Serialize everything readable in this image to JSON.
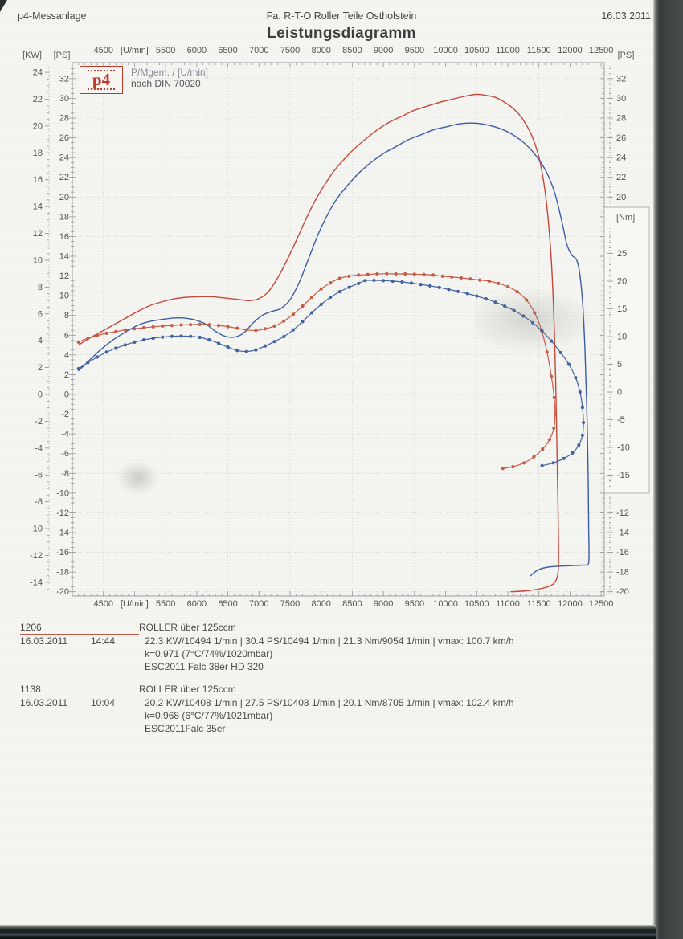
{
  "header": {
    "left": "p4-Messanlage",
    "center": "Fa. R-T-O  Roller Teile Ostholstein",
    "date": "16.03.2011",
    "title": "Leistungsdiagramm"
  },
  "legend": {
    "logo": "p4",
    "line1": "P/Mgem. / [U/min]",
    "line2": "nach DIN 70020"
  },
  "axes": {
    "kw_header": "[KW]",
    "ps_left_header": "[PS]",
    "ps_right_header": "[PS]",
    "nm_header": "[Nm]",
    "x_labels": [
      {
        "rpm": 4500,
        "text": "4500"
      },
      {
        "rpm": 5000,
        "text": "[U/min]"
      },
      {
        "rpm": 5500,
        "text": "5500"
      },
      {
        "rpm": 6000,
        "text": "6000"
      },
      {
        "rpm": 6500,
        "text": "6500"
      },
      {
        "rpm": 7000,
        "text": "7000"
      },
      {
        "rpm": 7500,
        "text": "7500"
      },
      {
        "rpm": 8000,
        "text": "8000"
      },
      {
        "rpm": 8500,
        "text": "8500"
      },
      {
        "rpm": 9000,
        "text": "9000"
      },
      {
        "rpm": 9500,
        "text": "9500"
      },
      {
        "rpm": 10000,
        "text": "10000"
      },
      {
        "rpm": 10500,
        "text": "10500"
      },
      {
        "rpm": 11000,
        "text": "11000"
      },
      {
        "rpm": 11500,
        "text": "11500"
      },
      {
        "rpm": 12000,
        "text": "12000"
      },
      {
        "rpm": 12500,
        "text": "12500"
      }
    ],
    "kw_ticks": [
      24,
      22,
      20,
      18,
      16,
      14,
      12,
      10,
      8,
      6,
      4,
      2,
      0,
      -2,
      -4,
      -6,
      -8,
      -10,
      -12,
      -14
    ],
    "ps_left_ticks": [
      32,
      30,
      28,
      26,
      24,
      22,
      20,
      18,
      16,
      14,
      12,
      10,
      8,
      6,
      4,
      2,
      0,
      -2,
      -4,
      -6,
      -8,
      -10,
      -12,
      -14,
      -16,
      -18,
      -20
    ],
    "ps_right_upper": [
      32,
      30,
      28,
      26,
      24,
      22,
      20
    ],
    "ps_right_lower": [
      -12,
      -14,
      -16,
      -18,
      -20
    ],
    "nm_ticks": [
      25,
      20,
      15,
      10,
      5,
      0,
      -5,
      -10,
      -15
    ]
  },
  "chart_data": {
    "type": "line",
    "title": "Leistungsdiagramm",
    "x_unit": "[U/min]",
    "x_range": [
      4000,
      12550
    ],
    "y_left_ps_range": [
      -20,
      32
    ],
    "y_left_kw_range": [
      -14,
      24
    ],
    "y_right_nm_range": [
      -15,
      25
    ],
    "grid": {
      "x_start": 4500,
      "x_step": 1000,
      "ps_step": 4
    },
    "series": [
      {
        "name": "power-run-1206",
        "unit": "PS",
        "axis": "ps",
        "color": "#c5493a",
        "markers": false,
        "points": [
          [
            4100,
            5.0
          ],
          [
            4250,
            5.6
          ],
          [
            4450,
            6.3
          ],
          [
            4650,
            7.0
          ],
          [
            4850,
            7.7
          ],
          [
            5050,
            8.4
          ],
          [
            5250,
            9.0
          ],
          [
            5450,
            9.4
          ],
          [
            5650,
            9.7
          ],
          [
            5850,
            9.85
          ],
          [
            6050,
            9.9
          ],
          [
            6250,
            9.9
          ],
          [
            6400,
            9.8
          ],
          [
            6550,
            9.7
          ],
          [
            6700,
            9.6
          ],
          [
            6850,
            9.5
          ],
          [
            7000,
            9.7
          ],
          [
            7150,
            10.4
          ],
          [
            7300,
            11.8
          ],
          [
            7450,
            13.6
          ],
          [
            7600,
            15.6
          ],
          [
            7750,
            17.7
          ],
          [
            7900,
            19.6
          ],
          [
            8050,
            21.2
          ],
          [
            8200,
            22.6
          ],
          [
            8350,
            23.7
          ],
          [
            8500,
            24.7
          ],
          [
            8700,
            25.8
          ],
          [
            8900,
            26.8
          ],
          [
            9100,
            27.6
          ],
          [
            9300,
            28.2
          ],
          [
            9500,
            28.8
          ],
          [
            9700,
            29.2
          ],
          [
            9900,
            29.6
          ],
          [
            10100,
            29.9
          ],
          [
            10300,
            30.2
          ],
          [
            10494,
            30.4
          ],
          [
            10650,
            30.3
          ],
          [
            10800,
            30.1
          ],
          [
            10950,
            29.6
          ],
          [
            11100,
            28.9
          ],
          [
            11250,
            27.8
          ],
          [
            11400,
            26.0
          ],
          [
            11520,
            23.5
          ],
          [
            11620,
            19.5
          ],
          [
            11700,
            13.5
          ],
          [
            11750,
            6.0
          ],
          [
            11780,
            -2.0
          ],
          [
            11800,
            -9.0
          ],
          [
            11815,
            -15.0
          ],
          [
            11810,
            -17.8
          ],
          [
            11770,
            -18.9
          ],
          [
            11680,
            -19.4
          ],
          [
            11520,
            -19.7
          ],
          [
            11300,
            -19.9
          ],
          [
            11050,
            -20.0
          ]
        ]
      },
      {
        "name": "power-run-1138",
        "unit": "PS",
        "axis": "ps",
        "color": "#3c5ca5",
        "markers": false,
        "points": [
          [
            4100,
            2.4
          ],
          [
            4250,
            3.3
          ],
          [
            4450,
            4.5
          ],
          [
            4650,
            5.5
          ],
          [
            4850,
            6.3
          ],
          [
            5050,
            7.0
          ],
          [
            5250,
            7.4
          ],
          [
            5450,
            7.6
          ],
          [
            5650,
            7.75
          ],
          [
            5850,
            7.7
          ],
          [
            6000,
            7.5
          ],
          [
            6150,
            7.1
          ],
          [
            6300,
            6.4
          ],
          [
            6450,
            5.9
          ],
          [
            6600,
            5.8
          ],
          [
            6750,
            6.2
          ],
          [
            6900,
            7.2
          ],
          [
            7050,
            8.0
          ],
          [
            7200,
            8.4
          ],
          [
            7350,
            8.7
          ],
          [
            7500,
            9.6
          ],
          [
            7650,
            11.4
          ],
          [
            7800,
            13.8
          ],
          [
            7950,
            16.2
          ],
          [
            8100,
            18.2
          ],
          [
            8250,
            19.8
          ],
          [
            8400,
            21.0
          ],
          [
            8600,
            22.4
          ],
          [
            8800,
            23.5
          ],
          [
            9000,
            24.4
          ],
          [
            9200,
            25.1
          ],
          [
            9400,
            25.8
          ],
          [
            9600,
            26.3
          ],
          [
            9800,
            26.8
          ],
          [
            10000,
            27.1
          ],
          [
            10200,
            27.4
          ],
          [
            10408,
            27.5
          ],
          [
            10600,
            27.4
          ],
          [
            10800,
            27.1
          ],
          [
            11000,
            26.6
          ],
          [
            11200,
            25.8
          ],
          [
            11400,
            24.6
          ],
          [
            11600,
            22.8
          ],
          [
            11750,
            20.5
          ],
          [
            11870,
            17.5
          ],
          [
            11950,
            15.2
          ],
          [
            12030,
            14.1
          ],
          [
            12100,
            13.7
          ],
          [
            12150,
            12.5
          ],
          [
            12200,
            9.5
          ],
          [
            12240,
            4.5
          ],
          [
            12270,
            -1.5
          ],
          [
            12290,
            -8.0
          ],
          [
            12300,
            -13.5
          ],
          [
            12305,
            -16.3
          ],
          [
            12290,
            -17.2
          ],
          [
            12200,
            -17.3
          ],
          [
            12050,
            -17.35
          ],
          [
            11850,
            -17.4
          ],
          [
            11650,
            -17.5
          ],
          [
            11480,
            -17.8
          ],
          [
            11360,
            -18.4
          ]
        ]
      },
      {
        "name": "torque-run-1206",
        "unit": "Nm",
        "axis": "nm",
        "color": "#c95a46",
        "markers": true,
        "points": [
          [
            4100,
            9.0
          ],
          [
            4250,
            9.7
          ],
          [
            4400,
            10.2
          ],
          [
            4550,
            10.6
          ],
          [
            4700,
            10.9
          ],
          [
            4850,
            11.2
          ],
          [
            5000,
            11.4
          ],
          [
            5150,
            11.6
          ],
          [
            5300,
            11.75
          ],
          [
            5450,
            11.9
          ],
          [
            5600,
            12.0
          ],
          [
            5750,
            12.1
          ],
          [
            5900,
            12.15
          ],
          [
            6050,
            12.2
          ],
          [
            6200,
            12.15
          ],
          [
            6350,
            12.0
          ],
          [
            6500,
            11.8
          ],
          [
            6650,
            11.5
          ],
          [
            6800,
            11.2
          ],
          [
            6950,
            11.1
          ],
          [
            7100,
            11.4
          ],
          [
            7250,
            11.9
          ],
          [
            7400,
            12.8
          ],
          [
            7550,
            14.0
          ],
          [
            7700,
            15.5
          ],
          [
            7850,
            17.1
          ],
          [
            8000,
            18.6
          ],
          [
            8150,
            19.7
          ],
          [
            8300,
            20.5
          ],
          [
            8450,
            20.9
          ],
          [
            8600,
            21.1
          ],
          [
            8750,
            21.2
          ],
          [
            8900,
            21.3
          ],
          [
            9054,
            21.35
          ],
          [
            9200,
            21.3
          ],
          [
            9350,
            21.3
          ],
          [
            9500,
            21.25
          ],
          [
            9650,
            21.2
          ],
          [
            9800,
            21.1
          ],
          [
            9950,
            20.9
          ],
          [
            10100,
            20.75
          ],
          [
            10250,
            20.6
          ],
          [
            10400,
            20.4
          ],
          [
            10550,
            20.2
          ],
          [
            10700,
            20.0
          ],
          [
            10850,
            19.6
          ],
          [
            11000,
            19.0
          ],
          [
            11150,
            18.1
          ],
          [
            11300,
            16.6
          ],
          [
            11430,
            14.3
          ],
          [
            11540,
            11.2
          ],
          [
            11630,
            7.2
          ],
          [
            11700,
            2.8
          ],
          [
            11745,
            -1.0
          ],
          [
            11760,
            -4.0
          ],
          [
            11740,
            -6.5
          ],
          [
            11670,
            -8.6
          ],
          [
            11560,
            -10.3
          ],
          [
            11420,
            -11.7
          ],
          [
            11260,
            -12.8
          ],
          [
            11080,
            -13.5
          ],
          [
            10920,
            -13.8
          ]
        ]
      },
      {
        "name": "torque-run-1138",
        "unit": "Nm",
        "axis": "nm",
        "color": "#41629f",
        "markers": true,
        "points": [
          [
            4100,
            4.2
          ],
          [
            4250,
            5.3
          ],
          [
            4400,
            6.3
          ],
          [
            4550,
            7.2
          ],
          [
            4700,
            7.9
          ],
          [
            4850,
            8.5
          ],
          [
            5000,
            9.0
          ],
          [
            5150,
            9.4
          ],
          [
            5300,
            9.7
          ],
          [
            5450,
            9.9
          ],
          [
            5600,
            10.05
          ],
          [
            5750,
            10.1
          ],
          [
            5900,
            10.05
          ],
          [
            6050,
            9.85
          ],
          [
            6200,
            9.4
          ],
          [
            6350,
            8.8
          ],
          [
            6500,
            8.1
          ],
          [
            6650,
            7.5
          ],
          [
            6800,
            7.3
          ],
          [
            6950,
            7.6
          ],
          [
            7100,
            8.3
          ],
          [
            7250,
            9.1
          ],
          [
            7400,
            10.0
          ],
          [
            7550,
            11.2
          ],
          [
            7700,
            12.7
          ],
          [
            7850,
            14.3
          ],
          [
            8000,
            15.8
          ],
          [
            8150,
            17.1
          ],
          [
            8300,
            18.1
          ],
          [
            8450,
            18.9
          ],
          [
            8600,
            19.6
          ],
          [
            8705,
            20.1
          ],
          [
            8850,
            20.15
          ],
          [
            9000,
            20.1
          ],
          [
            9150,
            20.0
          ],
          [
            9300,
            19.85
          ],
          [
            9450,
            19.65
          ],
          [
            9600,
            19.4
          ],
          [
            9750,
            19.15
          ],
          [
            9900,
            18.85
          ],
          [
            10050,
            18.5
          ],
          [
            10200,
            18.15
          ],
          [
            10350,
            17.75
          ],
          [
            10500,
            17.3
          ],
          [
            10650,
            16.8
          ],
          [
            10800,
            16.2
          ],
          [
            10950,
            15.5
          ],
          [
            11100,
            14.7
          ],
          [
            11250,
            13.7
          ],
          [
            11400,
            12.5
          ],
          [
            11550,
            11.0
          ],
          [
            11700,
            9.2
          ],
          [
            11850,
            7.1
          ],
          [
            11980,
            5.0
          ],
          [
            12090,
            2.6
          ],
          [
            12160,
            0.0
          ],
          [
            12200,
            -2.8
          ],
          [
            12215,
            -5.5
          ],
          [
            12200,
            -7.8
          ],
          [
            12140,
            -9.6
          ],
          [
            12040,
            -11.0
          ],
          [
            11900,
            -12.0
          ],
          [
            11730,
            -12.8
          ],
          [
            11550,
            -13.3
          ]
        ]
      }
    ]
  },
  "runs": [
    {
      "id": "1206",
      "vehicle": "ROLLER über 125ccm",
      "date": "16.03.2011",
      "time": "14:44",
      "result": "22.3 KW/10494 1/min  |  30.4 PS/10494 1/min  |  21.3 Nm/9054 1/min | vmax: 100.7 km/h",
      "correction": "k=0,971 (7°C/74%/1020mbar)",
      "setup": "ESC2011 Falc 38er HD 320",
      "underline_color": "#c0584c"
    },
    {
      "id": "1138",
      "vehicle": "ROLLER über 125ccm",
      "date": "16.03.2011",
      "time": "10:04",
      "result": "20.2 KW/10408 1/min  |  27.5 PS/10408 1/min  |  20.1 Nm/8705 1/min | vmax: 102.4 km/h",
      "correction": "k=0,968 (6°C/77%/1021mbar)",
      "setup": "ESC2011Falc 35er",
      "underline_color": "#8090c2"
    }
  ]
}
